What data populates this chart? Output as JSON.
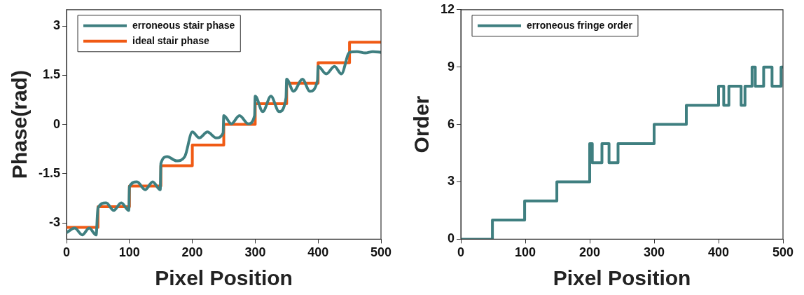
{
  "chart_data": [
    {
      "type": "line",
      "xlabel": "Pixel Position",
      "ylabel": "Phase(rad)",
      "xlim": [
        0,
        500
      ],
      "xticks": [
        0,
        100,
        200,
        300,
        400,
        500
      ],
      "ylim": [
        -3.5,
        3.5
      ],
      "yticks": [
        -3,
        -1.5,
        0,
        1.5,
        3
      ],
      "grid": false,
      "legend": "top left",
      "marker": "none",
      "series": [
        {
          "name": "erroneous stair phase",
          "type": "line",
          "color": "#3f7f80",
          "x": [
            0,
            13,
            25,
            36,
            47,
            50,
            63,
            75,
            87,
            99,
            100,
            112,
            125,
            137,
            149,
            150,
            160,
            175,
            188,
            200,
            211,
            224,
            238,
            249,
            250,
            262,
            275,
            289,
            299,
            300,
            312,
            325,
            338,
            349,
            350,
            361,
            375,
            387,
            399,
            400,
            413,
            426,
            437,
            450,
            462,
            475,
            487,
            500
          ],
          "values": [
            -3.3,
            -3.16,
            -3.37,
            -3.16,
            -3.37,
            -2.55,
            -2.39,
            -2.62,
            -2.39,
            -2.62,
            -1.9,
            -1.75,
            -1.99,
            -1.75,
            -1.99,
            -1.19,
            -0.98,
            -1.11,
            -0.98,
            -0.23,
            -0.41,
            -0.23,
            -0.41,
            -0.26,
            0.27,
            0.02,
            0.27,
            0.02,
            0.27,
            0.86,
            0.39,
            0.86,
            0.39,
            0.81,
            1.38,
            1.01,
            1.38,
            1.01,
            1.34,
            1.77,
            1.54,
            1.77,
            1.54,
            2.2,
            2.22,
            2.18,
            2.22,
            2.2
          ]
        },
        {
          "name": "ideal stair phase",
          "type": "step",
          "color": "#f05a14",
          "x": [
            0,
            50,
            100,
            150,
            200,
            250,
            300,
            350,
            400,
            450,
            500
          ],
          "values": [
            -3.14,
            -2.51,
            -1.88,
            -1.26,
            -0.63,
            0,
            0.63,
            1.26,
            1.88,
            2.51,
            2.51
          ]
        }
      ]
    },
    {
      "type": "step",
      "xlabel": "Pixel Position",
      "ylabel": "Order",
      "xlim": [
        0,
        500
      ],
      "xticks": [
        0,
        100,
        200,
        300,
        400,
        500
      ],
      "ylim": [
        0,
        12
      ],
      "yticks": [
        0,
        3,
        6,
        9,
        12
      ],
      "grid": false,
      "legend": "top left",
      "marker": "none",
      "series": [
        {
          "name": "erroneous fringe order",
          "color": "#3f7f80",
          "x": [
            0,
            49,
            99,
            149,
            200,
            204,
            219,
            230,
            244,
            300,
            350,
            400,
            408,
            416,
            435,
            441,
            452,
            457,
            470,
            483,
            497,
            500
          ],
          "values": [
            0,
            1,
            2,
            3,
            5,
            4,
            5,
            4,
            5,
            6,
            7,
            8,
            7,
            8,
            7,
            8,
            9,
            8,
            9,
            8,
            9,
            9
          ]
        }
      ]
    }
  ]
}
